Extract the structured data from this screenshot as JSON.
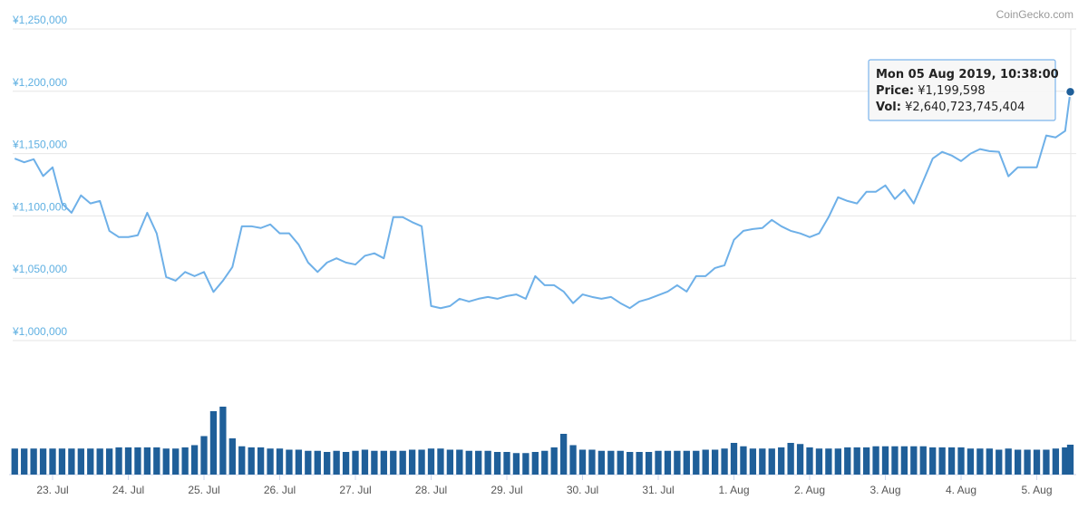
{
  "chart_data": {
    "type": "line",
    "watermark": "CoinGecko.com",
    "x": [
      22.5,
      22.625,
      22.75,
      22.875,
      23,
      23.125,
      23.25,
      23.375,
      23.5,
      23.625,
      23.75,
      23.875,
      24,
      24.125,
      24.25,
      24.375,
      24.5,
      24.625,
      24.75,
      24.875,
      25,
      25.125,
      25.25,
      25.375,
      25.5,
      25.625,
      25.75,
      25.875,
      26,
      26.125,
      26.25,
      26.375,
      26.5,
      26.625,
      26.75,
      26.875,
      27,
      27.125,
      27.25,
      27.375,
      27.5,
      27.625,
      27.75,
      27.875,
      28,
      28.125,
      28.25,
      28.375,
      28.5,
      28.625,
      28.75,
      28.875,
      29,
      29.125,
      29.25,
      29.375,
      29.5,
      29.625,
      29.75,
      29.875,
      30,
      30.125,
      30.25,
      30.375,
      30.5,
      30.625,
      30.75,
      30.875,
      31,
      31.125,
      31.25,
      31.375,
      31.5,
      31.625,
      31.75,
      31.875,
      32,
      32.125,
      32.25,
      32.375,
      32.5,
      32.625,
      32.75,
      32.875,
      33,
      33.125,
      33.25,
      33.375,
      33.5,
      33.625,
      33.75,
      33.875,
      34,
      34.125,
      34.25,
      34.375,
      34.5,
      34.625,
      34.75,
      34.875,
      35,
      35.125,
      35.25,
      35.375,
      35.5,
      35.625,
      35.75,
      35.875,
      36,
      36.125,
      36.25,
      36.375,
      36.443
    ],
    "series": [
      {
        "color": "#6eb0e8",
        "values": [
          1146000,
          1143000,
          1145500,
          1132000,
          1139000,
          1110000,
          1102500,
          1116500,
          1110000,
          1112000,
          1088000,
          1083000,
          1083000,
          1084500,
          1102500,
          1086000,
          1051000,
          1048000,
          1055000,
          1051700,
          1055000,
          1039000,
          1048000,
          1059000,
          1091700,
          1091700,
          1090300,
          1093200,
          1086000,
          1086000,
          1077000,
          1062600,
          1055000,
          1062600,
          1066000,
          1062600,
          1061000,
          1068000,
          1070000,
          1066000,
          1099000,
          1099000,
          1095000,
          1091700,
          1027700,
          1026000,
          1027700,
          1033500,
          1031300,
          1033500,
          1035000,
          1033500,
          1035700,
          1037000,
          1033500,
          1051700,
          1044400,
          1044400,
          1039300,
          1030000,
          1037000,
          1035000,
          1033500,
          1035000,
          1030000,
          1026000,
          1031300,
          1033500,
          1036400,
          1039300,
          1044400,
          1039300,
          1051700,
          1051700,
          1058200,
          1060400,
          1080800,
          1088000,
          1089500,
          1090300,
          1096800,
          1091700,
          1088000,
          1086000,
          1083000,
          1086000,
          1099000,
          1115000,
          1112000,
          1110000,
          1119400,
          1119400,
          1124500,
          1113600,
          1121000,
          1110000,
          1128000,
          1146000,
          1151400,
          1148500,
          1144000,
          1150000,
          1153600,
          1152000,
          1151400,
          1131800,
          1139000,
          1139000,
          1139000,
          1164500,
          1163000,
          1168200,
          1199598
        ]
      },
      {
        "color": "#1f5f99",
        "axis": "y2",
        "type": "bar",
        "values": [
          2300000000000,
          2300000000000,
          2300000000000,
          2300000000000,
          2300000000000,
          2300000000000,
          2300000000000,
          2300000000000,
          2300000000000,
          2300000000000,
          2300000000000,
          2400000000000,
          2400000000000,
          2400000000000,
          2400000000000,
          2400000000000,
          2300000000000,
          2300000000000,
          2400000000000,
          2600000000000,
          3400000000000,
          5600000000000,
          6000000000000,
          3200000000000,
          2500000000000,
          2400000000000,
          2400000000000,
          2300000000000,
          2300000000000,
          2200000000000,
          2200000000000,
          2100000000000,
          2100000000000,
          2000000000000,
          2100000000000,
          2000000000000,
          2100000000000,
          2200000000000,
          2100000000000,
          2100000000000,
          2100000000000,
          2100000000000,
          2200000000000,
          2200000000000,
          2300000000000,
          2300000000000,
          2200000000000,
          2200000000000,
          2100000000000,
          2100000000000,
          2100000000000,
          2000000000000,
          2000000000000,
          1900000000000,
          1900000000000,
          2000000000000,
          2100000000000,
          2400000000000,
          3600000000000,
          2600000000000,
          2200000000000,
          2200000000000,
          2100000000000,
          2100000000000,
          2100000000000,
          2000000000000,
          2000000000000,
          2000000000000,
          2100000000000,
          2100000000000,
          2100000000000,
          2100000000000,
          2100000000000,
          2200000000000,
          2200000000000,
          2300000000000,
          2800000000000,
          2500000000000,
          2300000000000,
          2300000000000,
          2300000000000,
          2400000000000,
          2800000000000,
          2700000000000,
          2400000000000,
          2300000000000,
          2300000000000,
          2300000000000,
          2400000000000,
          2400000000000,
          2400000000000,
          2500000000000,
          2500000000000,
          2500000000000,
          2500000000000,
          2500000000000,
          2500000000000,
          2400000000000,
          2400000000000,
          2400000000000,
          2400000000000,
          2300000000000,
          2300000000000,
          2300000000000,
          2200000000000,
          2300000000000,
          2200000000000,
          2200000000000,
          2200000000000,
          2200000000000,
          2300000000000,
          2400000000000,
          2640723745404
        ]
      }
    ],
    "xlim": [
      22.473,
      36.449
    ],
    "xticks": [
      {
        "value": 23,
        "label": "23. Jul"
      },
      {
        "value": 24,
        "label": "24. Jul"
      },
      {
        "value": 25,
        "label": "25. Jul"
      },
      {
        "value": 26,
        "label": "26. Jul"
      },
      {
        "value": 27,
        "label": "27. Jul"
      },
      {
        "value": 28,
        "label": "28. Jul"
      },
      {
        "value": 29,
        "label": "29. Jul"
      },
      {
        "value": 30,
        "label": "30. Jul"
      },
      {
        "value": 31,
        "label": "31. Jul"
      },
      {
        "value": 32,
        "label": "1. Aug"
      },
      {
        "value": 33,
        "label": "2. Aug"
      },
      {
        "value": 34,
        "label": "3. Aug"
      },
      {
        "value": 35,
        "label": "4. Aug"
      },
      {
        "value": 36,
        "label": "5. Aug"
      }
    ],
    "ylim": [
      1000000,
      1250000
    ],
    "yticks": [
      {
        "value": 1000000,
        "label": "¥1,000,000"
      },
      {
        "value": 1050000,
        "label": "¥1,050,000"
      },
      {
        "value": 1100000,
        "label": "¥1,100,000"
      },
      {
        "value": 1150000,
        "label": "¥1,150,000"
      },
      {
        "value": 1200000,
        "label": "¥1,200,000"
      },
      {
        "value": 1250000,
        "label": "¥1,250,000"
      }
    ],
    "y2lim": [
      0,
      10000000000000
    ],
    "grid": true,
    "tooltip": {
      "date": "Mon 05 Aug 2019, 10:38:00",
      "price_label": "Price:",
      "price": "¥1,199,598",
      "vol_label": "Vol:",
      "vol": "¥2,640,723,745,404"
    }
  }
}
